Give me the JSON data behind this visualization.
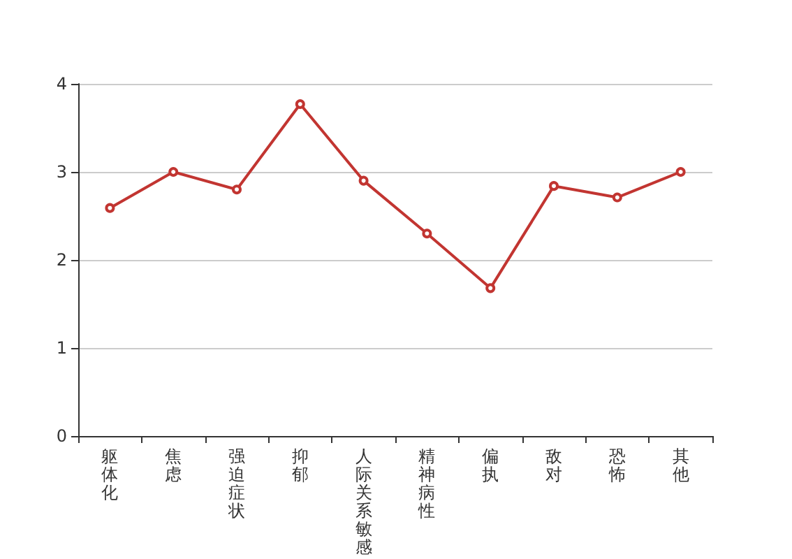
{
  "chart_data": {
    "type": "line",
    "categories": [
      "躯体化",
      "焦虑",
      "强迫症状",
      "抑郁",
      "人际关系敏感",
      "精神病性",
      "偏执",
      "敌对",
      "恐怖",
      "其他"
    ],
    "series": [
      {
        "color": "#c23531",
        "values": [
          2.59,
          3.0,
          2.8,
          3.77,
          2.9,
          2.3,
          1.68,
          2.84,
          2.71,
          3.0
        ]
      }
    ],
    "ylim": [
      0,
      4
    ],
    "yticks": [
      0,
      1,
      2,
      3,
      4
    ],
    "grid": "y",
    "marker": "circle",
    "line_style": "solid"
  }
}
